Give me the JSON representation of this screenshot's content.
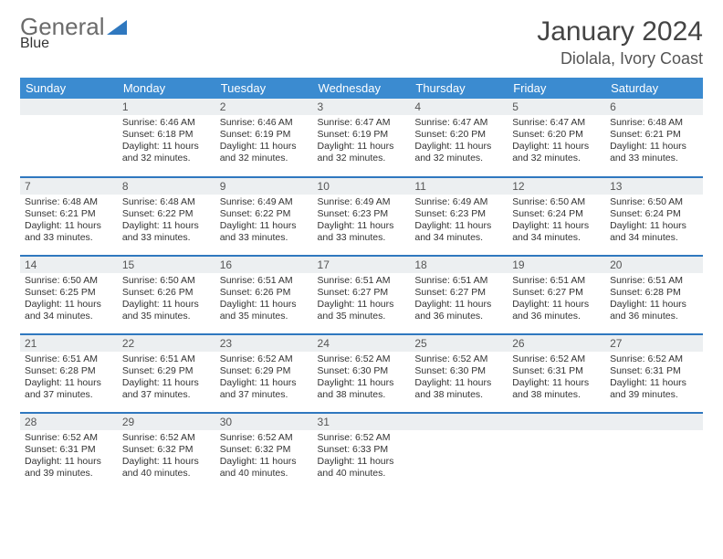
{
  "brand": {
    "part1": "General",
    "part2": "Blue",
    "triangle_color": "#2f78bf",
    "text_gray": "#6b6b6b"
  },
  "header": {
    "month": "January 2024",
    "location": "Diolala, Ivory Coast"
  },
  "colors": {
    "header_bg": "#3b8bd0",
    "rule": "#2f78bf",
    "daynum_bg": "#eceff1",
    "text": "#333333"
  },
  "day_labels": [
    "Sunday",
    "Monday",
    "Tuesday",
    "Wednesday",
    "Thursday",
    "Friday",
    "Saturday"
  ],
  "weeks": [
    [
      null,
      {
        "n": "1",
        "sr": "Sunrise: 6:46 AM",
        "ss": "Sunset: 6:18 PM",
        "dl": "Daylight: 11 hours and 32 minutes."
      },
      {
        "n": "2",
        "sr": "Sunrise: 6:46 AM",
        "ss": "Sunset: 6:19 PM",
        "dl": "Daylight: 11 hours and 32 minutes."
      },
      {
        "n": "3",
        "sr": "Sunrise: 6:47 AM",
        "ss": "Sunset: 6:19 PM",
        "dl": "Daylight: 11 hours and 32 minutes."
      },
      {
        "n": "4",
        "sr": "Sunrise: 6:47 AM",
        "ss": "Sunset: 6:20 PM",
        "dl": "Daylight: 11 hours and 32 minutes."
      },
      {
        "n": "5",
        "sr": "Sunrise: 6:47 AM",
        "ss": "Sunset: 6:20 PM",
        "dl": "Daylight: 11 hours and 32 minutes."
      },
      {
        "n": "6",
        "sr": "Sunrise: 6:48 AM",
        "ss": "Sunset: 6:21 PM",
        "dl": "Daylight: 11 hours and 33 minutes."
      }
    ],
    [
      {
        "n": "7",
        "sr": "Sunrise: 6:48 AM",
        "ss": "Sunset: 6:21 PM",
        "dl": "Daylight: 11 hours and 33 minutes."
      },
      {
        "n": "8",
        "sr": "Sunrise: 6:48 AM",
        "ss": "Sunset: 6:22 PM",
        "dl": "Daylight: 11 hours and 33 minutes."
      },
      {
        "n": "9",
        "sr": "Sunrise: 6:49 AM",
        "ss": "Sunset: 6:22 PM",
        "dl": "Daylight: 11 hours and 33 minutes."
      },
      {
        "n": "10",
        "sr": "Sunrise: 6:49 AM",
        "ss": "Sunset: 6:23 PM",
        "dl": "Daylight: 11 hours and 33 minutes."
      },
      {
        "n": "11",
        "sr": "Sunrise: 6:49 AM",
        "ss": "Sunset: 6:23 PM",
        "dl": "Daylight: 11 hours and 34 minutes."
      },
      {
        "n": "12",
        "sr": "Sunrise: 6:50 AM",
        "ss": "Sunset: 6:24 PM",
        "dl": "Daylight: 11 hours and 34 minutes."
      },
      {
        "n": "13",
        "sr": "Sunrise: 6:50 AM",
        "ss": "Sunset: 6:24 PM",
        "dl": "Daylight: 11 hours and 34 minutes."
      }
    ],
    [
      {
        "n": "14",
        "sr": "Sunrise: 6:50 AM",
        "ss": "Sunset: 6:25 PM",
        "dl": "Daylight: 11 hours and 34 minutes."
      },
      {
        "n": "15",
        "sr": "Sunrise: 6:50 AM",
        "ss": "Sunset: 6:26 PM",
        "dl": "Daylight: 11 hours and 35 minutes."
      },
      {
        "n": "16",
        "sr": "Sunrise: 6:51 AM",
        "ss": "Sunset: 6:26 PM",
        "dl": "Daylight: 11 hours and 35 minutes."
      },
      {
        "n": "17",
        "sr": "Sunrise: 6:51 AM",
        "ss": "Sunset: 6:27 PM",
        "dl": "Daylight: 11 hours and 35 minutes."
      },
      {
        "n": "18",
        "sr": "Sunrise: 6:51 AM",
        "ss": "Sunset: 6:27 PM",
        "dl": "Daylight: 11 hours and 36 minutes."
      },
      {
        "n": "19",
        "sr": "Sunrise: 6:51 AM",
        "ss": "Sunset: 6:27 PM",
        "dl": "Daylight: 11 hours and 36 minutes."
      },
      {
        "n": "20",
        "sr": "Sunrise: 6:51 AM",
        "ss": "Sunset: 6:28 PM",
        "dl": "Daylight: 11 hours and 36 minutes."
      }
    ],
    [
      {
        "n": "21",
        "sr": "Sunrise: 6:51 AM",
        "ss": "Sunset: 6:28 PM",
        "dl": "Daylight: 11 hours and 37 minutes."
      },
      {
        "n": "22",
        "sr": "Sunrise: 6:51 AM",
        "ss": "Sunset: 6:29 PM",
        "dl": "Daylight: 11 hours and 37 minutes."
      },
      {
        "n": "23",
        "sr": "Sunrise: 6:52 AM",
        "ss": "Sunset: 6:29 PM",
        "dl": "Daylight: 11 hours and 37 minutes."
      },
      {
        "n": "24",
        "sr": "Sunrise: 6:52 AM",
        "ss": "Sunset: 6:30 PM",
        "dl": "Daylight: 11 hours and 38 minutes."
      },
      {
        "n": "25",
        "sr": "Sunrise: 6:52 AM",
        "ss": "Sunset: 6:30 PM",
        "dl": "Daylight: 11 hours and 38 minutes."
      },
      {
        "n": "26",
        "sr": "Sunrise: 6:52 AM",
        "ss": "Sunset: 6:31 PM",
        "dl": "Daylight: 11 hours and 38 minutes."
      },
      {
        "n": "27",
        "sr": "Sunrise: 6:52 AM",
        "ss": "Sunset: 6:31 PM",
        "dl": "Daylight: 11 hours and 39 minutes."
      }
    ],
    [
      {
        "n": "28",
        "sr": "Sunrise: 6:52 AM",
        "ss": "Sunset: 6:31 PM",
        "dl": "Daylight: 11 hours and 39 minutes."
      },
      {
        "n": "29",
        "sr": "Sunrise: 6:52 AM",
        "ss": "Sunset: 6:32 PM",
        "dl": "Daylight: 11 hours and 40 minutes."
      },
      {
        "n": "30",
        "sr": "Sunrise: 6:52 AM",
        "ss": "Sunset: 6:32 PM",
        "dl": "Daylight: 11 hours and 40 minutes."
      },
      {
        "n": "31",
        "sr": "Sunrise: 6:52 AM",
        "ss": "Sunset: 6:33 PM",
        "dl": "Daylight: 11 hours and 40 minutes."
      },
      null,
      null,
      null
    ]
  ]
}
